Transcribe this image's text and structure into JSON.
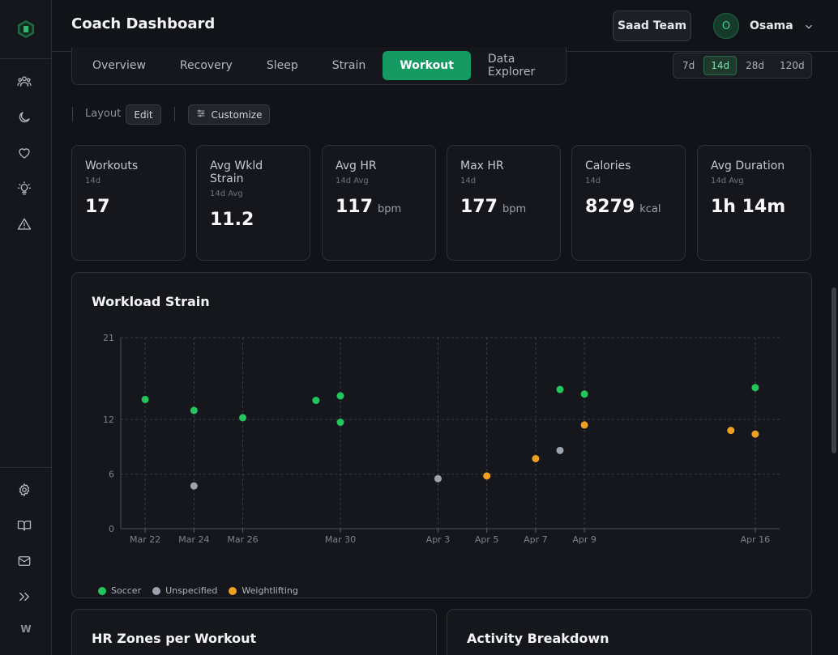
{
  "header": {
    "title": "Coach Dashboard",
    "team_button": "Saad Team",
    "user_initial": "O",
    "user_name": "Osama"
  },
  "sidebar": {
    "icons": [
      "users-icon",
      "moon-icon",
      "heart-icon",
      "lightbulb-icon",
      "alert-icon"
    ],
    "bottom_icons": [
      "settings-icon",
      "book-icon",
      "mail-icon",
      "expand-icon"
    ],
    "user_initial": "W"
  },
  "tabs": [
    {
      "label": "Overview",
      "active": false
    },
    {
      "label": "Recovery",
      "active": false
    },
    {
      "label": "Sleep",
      "active": false
    },
    {
      "label": "Strain",
      "active": false
    },
    {
      "label": "Workout",
      "active": true
    },
    {
      "label": "Data Explorer",
      "active": false
    }
  ],
  "range": [
    {
      "label": "7d",
      "active": false
    },
    {
      "label": "14d",
      "active": true
    },
    {
      "label": "28d",
      "active": false
    },
    {
      "label": "120d",
      "active": false
    }
  ],
  "toolbar": {
    "layout_label": "Layout",
    "edit_label": "Edit",
    "customize_label": "Customize"
  },
  "stats": [
    {
      "title": "Workouts",
      "sub": "14d",
      "value": "17",
      "unit": ""
    },
    {
      "title": "Avg Wkld Strain",
      "sub": "14d Avg",
      "value": "11.2",
      "unit": ""
    },
    {
      "title": "Avg HR",
      "sub": "14d Avg",
      "value": "117",
      "unit": "bpm"
    },
    {
      "title": "Max HR",
      "sub": "14d",
      "value": "177",
      "unit": "bpm"
    },
    {
      "title": "Calories",
      "sub": "14d",
      "value": "8279",
      "unit": "kcal"
    },
    {
      "title": "Avg Duration",
      "sub": "14d Avg",
      "value": "1h 14m",
      "unit": ""
    }
  ],
  "chart_data": {
    "type": "scatter",
    "title": "Workload Strain",
    "x_min": "Mar 21",
    "x_max": "Apr 17",
    "x_ticks": [
      "Mar 22",
      "Mar 24",
      "Mar 26",
      "Mar 30",
      "Apr 3",
      "Apr 5",
      "Apr 7",
      "Apr 9",
      "Apr 16"
    ],
    "y_ticks": [
      0,
      6,
      12,
      21
    ],
    "ylim": [
      0,
      21
    ],
    "grid": true,
    "legend_position": "bottom-left",
    "series": [
      {
        "name": "Soccer",
        "color": "#22c55e",
        "points": [
          {
            "x": "Mar 22",
            "y": 14.2
          },
          {
            "x": "Mar 24",
            "y": 13.0
          },
          {
            "x": "Mar 26",
            "y": 12.2
          },
          {
            "x": "Mar 29",
            "y": 14.1
          },
          {
            "x": "Mar 30",
            "y": 14.6
          },
          {
            "x": "Mar 30",
            "y": 11.7
          },
          {
            "x": "Apr 8",
            "y": 15.3
          },
          {
            "x": "Apr 9",
            "y": 14.8
          },
          {
            "x": "Apr 16",
            "y": 15.5
          }
        ]
      },
      {
        "name": "Unspecified",
        "color": "#9ca3af",
        "points": [
          {
            "x": "Mar 24",
            "y": 4.7
          },
          {
            "x": "Apr 3",
            "y": 5.5
          },
          {
            "x": "Apr 8",
            "y": 8.6
          }
        ]
      },
      {
        "name": "Weightlifting",
        "color": "#f0a020",
        "points": [
          {
            "x": "Apr 5",
            "y": 5.8
          },
          {
            "x": "Apr 7",
            "y": 7.7
          },
          {
            "x": "Apr 9",
            "y": 11.4
          },
          {
            "x": "Apr 15",
            "y": 10.8
          },
          {
            "x": "Apr 16",
            "y": 10.4
          }
        ]
      }
    ]
  },
  "bottom_panels": [
    {
      "title": "HR Zones per Workout"
    },
    {
      "title": "Activity Breakdown"
    }
  ]
}
